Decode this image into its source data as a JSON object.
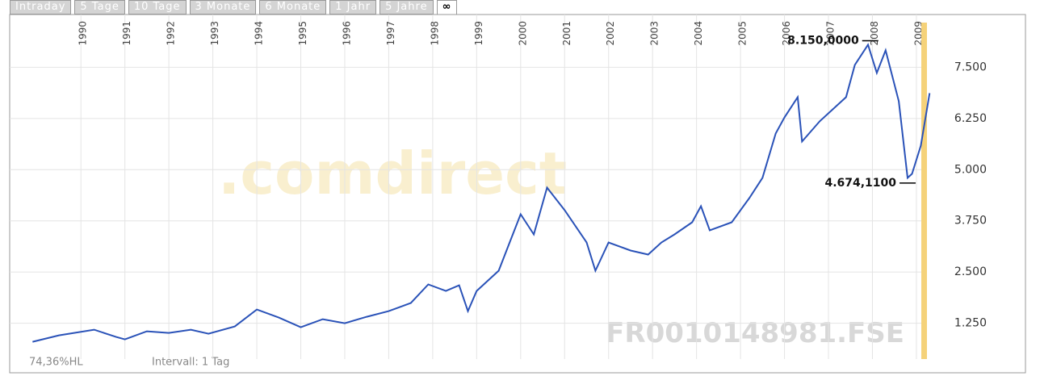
{
  "tabs": [
    "Intraday",
    "5 Tage",
    "10 Tage",
    "3 Monate",
    "6 Monate",
    "1 Jahr",
    "5 Jahre",
    "∞"
  ],
  "active_tab": 7,
  "chart_data": {
    "type": "line",
    "watermark": ".comdirect",
    "symbol": "FR0010148981.FSE",
    "footer": [
      "74,36%HL",
      "Intervall: 1 Tag"
    ],
    "xlim": [
      1988.38,
      2009.24
    ],
    "xticks": [
      1990,
      1991,
      1992,
      1993,
      1994,
      1995,
      1996,
      1997,
      1998,
      1999,
      2000,
      2001,
      2002,
      2003,
      2004,
      2005,
      2006,
      2007,
      2008,
      2009
    ],
    "ylim": [
      375,
      8750
    ],
    "yticks": [
      {
        "value": 1250,
        "label": "1.250"
      },
      {
        "value": 2500,
        "label": "2.500"
      },
      {
        "value": 3750,
        "label": "3.750"
      },
      {
        "value": 5000,
        "label": "5.000"
      },
      {
        "value": 6250,
        "label": "6.250"
      },
      {
        "value": 7500,
        "label": "7.500"
      }
    ],
    "grid": true,
    "x": [
      1988.9,
      1989.5,
      1990.3,
      1990.8,
      1991.0,
      1991.5,
      1992.0,
      1992.5,
      1992.9,
      1993.5,
      1994.0,
      1994.5,
      1995.0,
      1995.5,
      1996.0,
      1996.5,
      1997.0,
      1997.5,
      1997.9,
      1998.3,
      1998.6,
      1998.8,
      1999.0,
      1999.5,
      2000.0,
      2000.3,
      2000.6,
      2001.0,
      2001.5,
      2001.7,
      2002.0,
      2002.5,
      2002.9,
      2003.2,
      2003.5,
      2003.9,
      2004.1,
      2004.3,
      2004.8,
      2005.2,
      2005.5,
      2005.8,
      2006.0,
      2006.3,
      2006.4,
      2006.8,
      2007.0,
      2007.4,
      2007.6,
      2007.9,
      2008.1,
      2008.3,
      2008.6,
      2008.8,
      2008.9,
      2009.1,
      2009.3
    ],
    "series": [
      {
        "color": "#2a52b8",
        "values": [
          796,
          954,
          1092,
          915,
          855,
          1053,
          1013,
          1092,
          993,
          1171,
          1585,
          1388,
          1151,
          1349,
          1250,
          1408,
          1546,
          1743,
          2197,
          2039,
          2177,
          1546,
          2039,
          2532,
          3912,
          3419,
          4563,
          4011,
          3222,
          2532,
          3222,
          3025,
          2926,
          3222,
          3419,
          3715,
          4109,
          3518,
          3715,
          4307,
          4800,
          5884,
          6279,
          6772,
          5687,
          6180,
          6377,
          6772,
          7560,
          8053,
          7363,
          7915,
          6673,
          4800,
          4899,
          5588,
          6870
        ]
      }
    ],
    "annotations": [
      {
        "x": 2007.95,
        "value": 8150,
        "label": "8.150,0000"
      },
      {
        "x": 2008.8,
        "value": 4674.11,
        "label": "4.674,1100"
      }
    ]
  }
}
